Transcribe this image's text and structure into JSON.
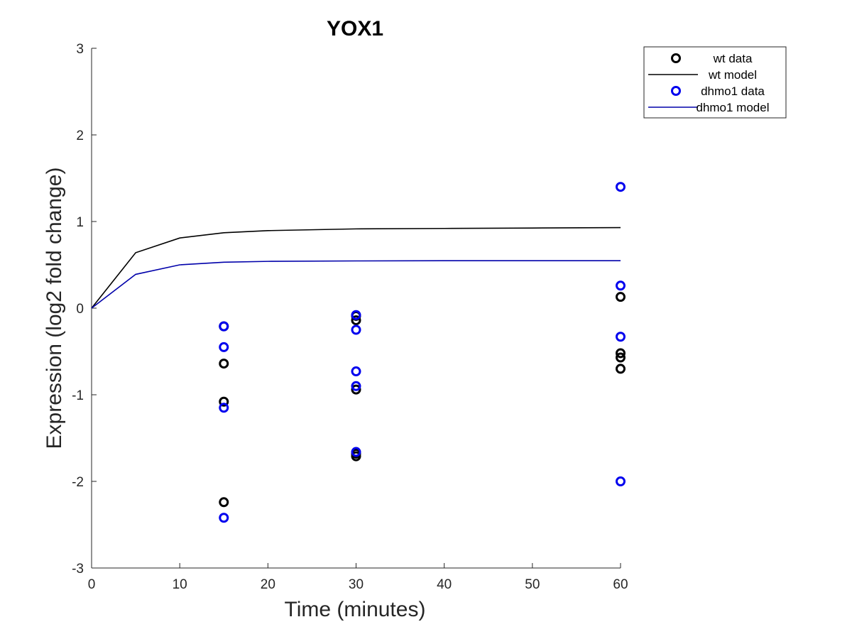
{
  "chart_data": {
    "type": "scatter",
    "title": "YOX1",
    "xlabel": "Time (minutes)",
    "ylabel": "Expression (log2 fold change)",
    "xlim": [
      0,
      60
    ],
    "ylim": [
      -3,
      3
    ],
    "xticks": [
      0,
      10,
      20,
      30,
      40,
      50,
      60
    ],
    "yticks": [
      -3,
      -2,
      -1,
      0,
      1,
      2,
      3
    ],
    "grid": false,
    "legend_position": "top-right outside",
    "series": [
      {
        "name": "wt data",
        "kind": "markers",
        "color": "#000000",
        "points": [
          [
            15,
            -0.64
          ],
          [
            15,
            -1.08
          ],
          [
            15,
            -2.24
          ],
          [
            15,
            -0.21
          ],
          [
            30,
            -0.09
          ],
          [
            30,
            -0.14
          ],
          [
            30,
            -0.94
          ],
          [
            30,
            -1.68
          ],
          [
            30,
            -1.71
          ],
          [
            60,
            0.13
          ],
          [
            60,
            -0.52
          ],
          [
            60,
            -0.57
          ],
          [
            60,
            -0.7
          ]
        ]
      },
      {
        "name": "wt model",
        "kind": "line",
        "color": "#000000",
        "points": [
          [
            0,
            0
          ],
          [
            5,
            0.64
          ],
          [
            10,
            0.81
          ],
          [
            15,
            0.87
          ],
          [
            20,
            0.895
          ],
          [
            30,
            0.915
          ],
          [
            40,
            0.92
          ],
          [
            50,
            0.925
          ],
          [
            60,
            0.93
          ]
        ]
      },
      {
        "name": "dhmo1 data",
        "kind": "markers",
        "color": "#0000ee",
        "points": [
          [
            15,
            -0.21
          ],
          [
            15,
            -0.45
          ],
          [
            15,
            -1.15
          ],
          [
            15,
            -2.42
          ],
          [
            30,
            -0.08
          ],
          [
            30,
            -0.25
          ],
          [
            30,
            -0.73
          ],
          [
            30,
            -0.9
          ],
          [
            30,
            -1.66
          ],
          [
            60,
            1.4
          ],
          [
            60,
            0.26
          ],
          [
            60,
            -0.33
          ],
          [
            60,
            -2.0
          ]
        ]
      },
      {
        "name": "dhmo1 model",
        "kind": "line",
        "color": "#0000aa",
        "points": [
          [
            0,
            0
          ],
          [
            5,
            0.39
          ],
          [
            10,
            0.5
          ],
          [
            15,
            0.53
          ],
          [
            20,
            0.54
          ],
          [
            30,
            0.545
          ],
          [
            40,
            0.548
          ],
          [
            50,
            0.548
          ],
          [
            60,
            0.548
          ]
        ]
      }
    ]
  }
}
